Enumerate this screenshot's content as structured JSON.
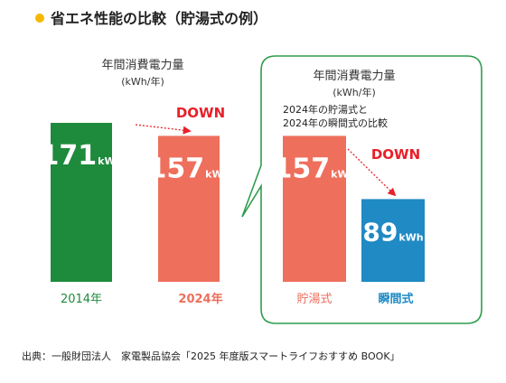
{
  "title": "省エネ性能の比較（貯湯式の例）",
  "colors": {
    "bullet": "#f5b800",
    "green": "#1e8a3c",
    "salmon": "#ee6f5c",
    "blue": "#1f8ac4",
    "down_red": "#e8202a",
    "panel_border": "#2e9d4c",
    "text_dark": "#222222",
    "bar_text": "#ffffff",
    "arrow": "#e8202a"
  },
  "chart_data": [
    {
      "type": "bar",
      "ylabel": "年間消費電力量",
      "unit_label": "(kWh/年)",
      "unit": "kWh",
      "categories": [
        "2014年",
        "2024年"
      ],
      "values": [
        171,
        157
      ],
      "value_labels": [
        "171",
        "157"
      ],
      "colors": [
        "green",
        "salmon"
      ],
      "annotation": "DOWN",
      "ylim": [
        0,
        171
      ]
    },
    {
      "type": "bar",
      "ylabel": "年間消費電力量",
      "unit_label": "(kWh/年)",
      "subtitle": "2024年の貯湯式と2024年の瞬間式の比較",
      "subtitle_lines": [
        "2024年の貯湯式と",
        "2024年の瞬間式の比較"
      ],
      "unit": "kWh",
      "categories": [
        "貯湯式",
        "瞬間式"
      ],
      "values": [
        157,
        89
      ],
      "value_labels": [
        "157",
        "89"
      ],
      "colors": [
        "salmon",
        "blue"
      ],
      "annotation": "DOWN",
      "ylim": [
        0,
        171
      ]
    }
  ],
  "footer": "出典：一般財団法人　家電製品協会「2025 年度版スマートライフおすすめ BOOK」"
}
